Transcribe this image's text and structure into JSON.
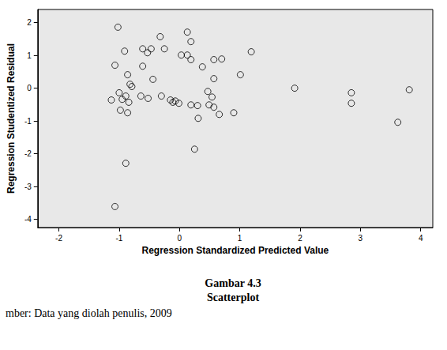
{
  "chart_data": {
    "type": "scatter",
    "title": "Gambar 4.3",
    "subtitle": "Scatterplot",
    "annotations": [
      "mber: Data yang diolah penulis, 2009"
    ],
    "x_label": "Regression Standardized Predicted Value",
    "y_label": "Regression Studentized Residual",
    "x": [
      -1.02,
      -1.07,
      -0.91,
      -0.86,
      -0.82,
      -0.79,
      -1.0,
      -1.13,
      -0.95,
      -0.89,
      -0.84,
      -0.98,
      -0.86,
      -0.89,
      -1.07,
      -0.61,
      -0.61,
      -0.47,
      -0.53,
      -0.32,
      -0.25,
      -0.44,
      -0.64,
      -0.52,
      -0.3,
      -0.15,
      -0.11,
      -0.07,
      0.03,
      0.13,
      0.13,
      0.19,
      0.19,
      0.38,
      -0.01,
      0.19,
      0.31,
      0.57,
      0.7,
      0.47,
      0.57,
      0.54,
      0.49,
      0.25,
      0.3,
      0.57,
      0.66,
      0.9,
      1.01,
      1.19,
      1.91,
      2.85,
      2.85,
      3.62,
      3.81
    ],
    "values": [
      1.86,
      0.7,
      1.13,
      0.41,
      0.12,
      0.05,
      -0.14,
      -0.36,
      -0.34,
      -0.24,
      -0.43,
      -0.67,
      -0.75,
      -2.29,
      -3.61,
      0.67,
      1.2,
      1.2,
      1.08,
      1.57,
      1.2,
      0.27,
      -0.24,
      -0.31,
      -0.24,
      -0.36,
      -0.43,
      -0.39,
      1.01,
      1.01,
      1.71,
      1.42,
      0.87,
      0.65,
      -0.46,
      -0.51,
      -0.92,
      0.87,
      0.89,
      -0.1,
      0.29,
      -0.27,
      -0.51,
      -1.86,
      -0.53,
      -0.58,
      -0.8,
      -0.75,
      0.41,
      1.11,
      0.0,
      -0.14,
      -0.46,
      -1.04,
      -0.05
    ],
    "color": "#000000",
    "marker": "open_circle",
    "xlim": [
      -2.35,
      4.2
    ],
    "xticks": [
      -2,
      -1,
      0,
      1,
      2,
      3,
      4
    ],
    "ylim": [
      -4.25,
      2.4
    ],
    "yticks": [
      -4,
      -3,
      -2,
      -1,
      0,
      1,
      2
    ],
    "grid": false
  }
}
